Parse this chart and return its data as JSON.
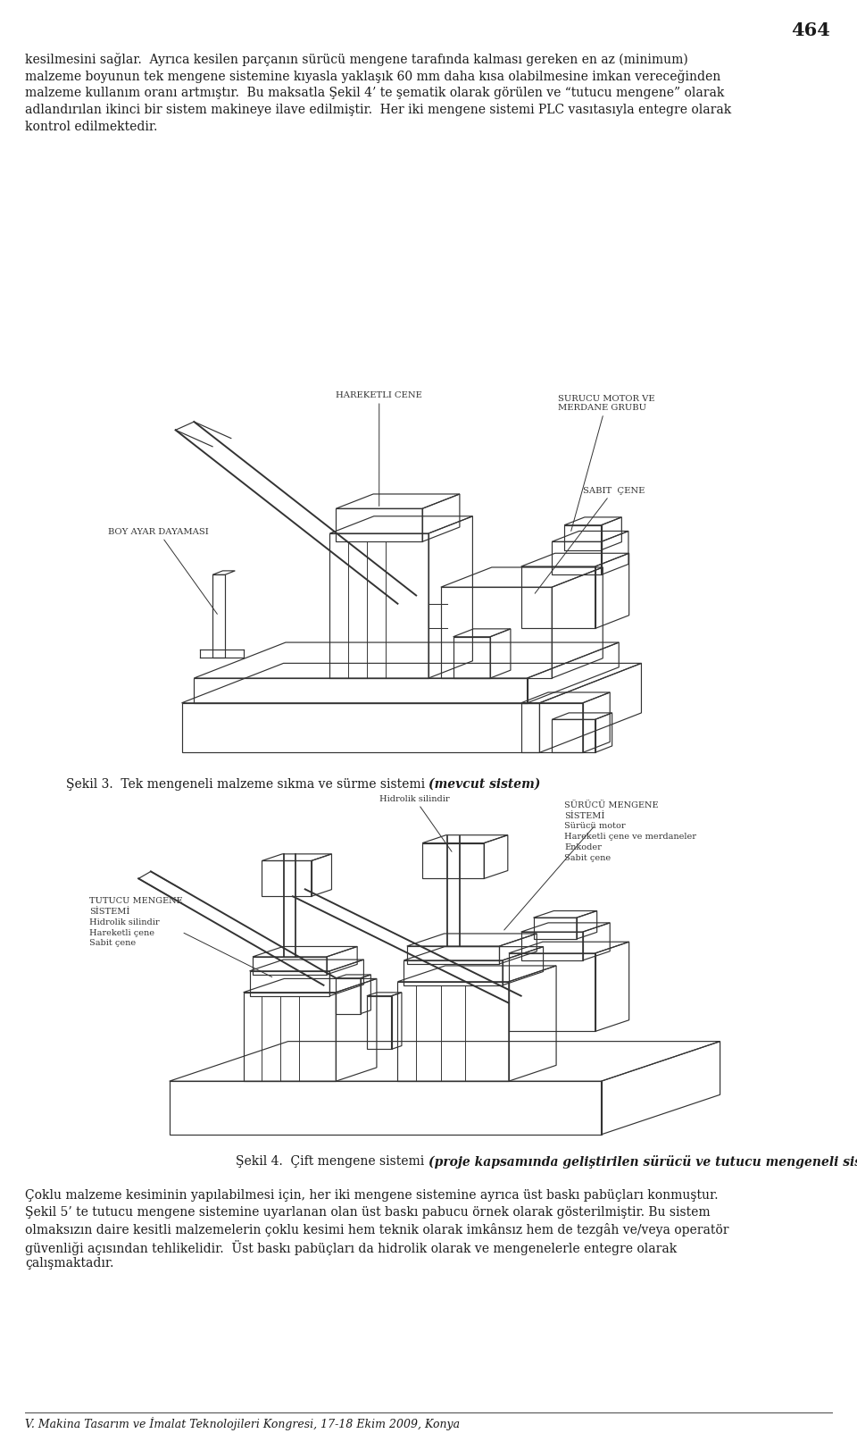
{
  "page_number": "464",
  "bg_color": "#ffffff",
  "text_color": "#1a1a1a",
  "ec": "#333333",
  "font_size_body": 10.0,
  "font_size_caption": 10.0,
  "font_size_label_fig3": 7.2,
  "font_size_label_fig4": 7.0,
  "font_size_page": 15,
  "font_size_footer": 9.0,
  "paragraph1_lines": [
    "kesilmesini sağlar.  Ayrıca kesilen parçanın sürücü mengene tarafında kalması gereken en az (minimum)",
    "malzeme boyunun tek mengene sistemine kıyasla yaklaşık 60 mm daha kısa olabilmesine imkan vereceğinden",
    "malzeme kullanım oranı artmıştır.  Bu maksatla Şekil 4’ te şematik olarak görülen ve “tutucu mengene” olarak",
    "adlandırılan ikinci bir sistem makineye ilave edilmiştir.  Her iki mengene sistemi PLC vasıtasıyla entegre olarak",
    "kontrol edilmektedir."
  ],
  "fig3_caption_normal": "Şekil 3.  Tek mengeneli malzeme sıkma ve sürme sistemi ",
  "fig3_caption_italic": "(mevcut sistem)",
  "fig4_caption_normal": "Şekil 4.  Çift mengene sistemi ",
  "fig4_caption_italic": "(proje kapsamında geliştirilen sürücü ve tutucu mengeneli sistem)",
  "paragraph2_lines": [
    "Çoklu malzeme kesiminin yapılabilmesi için, her iki mengene sistemine ayrıca üst baskı pabüçları konmuştur.",
    "Şekil 5’ te tutucu mengene sistemine uyarlanan olan üst baskı pabucu örnek olarak gösterilmiştir. Bu sistem",
    "olmaksızın daire kesitli malzemelerin çoklu kesimi hem teknik olarak imkânsız hem de tezgâh ve/veya operatör",
    "güvenliği açısından tehlikelidir.  Üst baskı pabüçları da hidrolik olarak ve mengenelerle entegre olarak",
    "çalışmaktadır."
  ],
  "footer": "V. Makina Tasarım ve İmalat Teknolojileri Kongresi, 17-18 Ekim 2009, Konya"
}
